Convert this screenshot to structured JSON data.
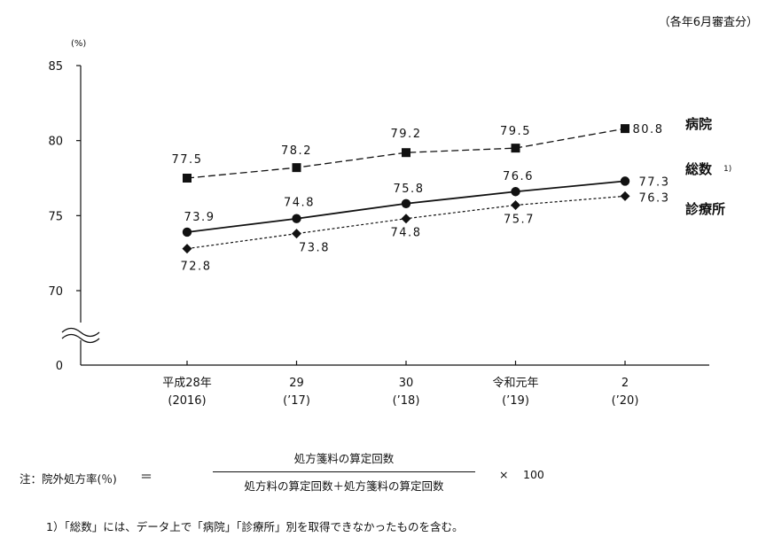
{
  "header": {
    "period_note": "（各年6月審査分）"
  },
  "chart_data": {
    "type": "line",
    "y_unit_label": "(%)",
    "ylim": [
      70,
      85
    ],
    "yticks": [
      70,
      75,
      80,
      85
    ],
    "y_break": true,
    "y_zero_label": "0",
    "x_ticks": [
      {
        "line1": "平成28年",
        "line2": "(2016)"
      },
      {
        "line1": "29",
        "line2": "(’17)"
      },
      {
        "line1": "30",
        "line2": "(’18)"
      },
      {
        "line1": "令和元年",
        "line2": "(’19)"
      },
      {
        "line1": "2",
        "line2": "(’20)"
      }
    ],
    "series": [
      {
        "name": "病院",
        "marker": "square",
        "line_style": "dashed",
        "values": [
          77.5,
          78.2,
          79.2,
          79.5,
          80.8
        ],
        "labels": [
          "77.5",
          "78.2",
          "79.2",
          "79.5",
          "80.8"
        ]
      },
      {
        "name": "総数",
        "name_suffix": "1)",
        "marker": "circle",
        "line_style": "solid",
        "values": [
          73.9,
          74.8,
          75.8,
          76.6,
          77.3
        ],
        "labels": [
          "73.9",
          "74.8",
          "75.8",
          "76.6",
          "77.3"
        ]
      },
      {
        "name": "診療所",
        "marker": "diamond",
        "line_style": "dotted",
        "values": [
          72.8,
          73.8,
          74.8,
          75.7,
          76.3
        ],
        "labels": [
          "72.8",
          "73.8",
          "74.8",
          "75.7",
          "76.3"
        ]
      }
    ]
  },
  "note": {
    "label": "注：院外処方率(％)",
    "equals": "＝",
    "numerator": "処方箋料の算定回数",
    "denominator": "処方料の算定回数＋処方箋料の算定回数",
    "times": "×",
    "multiplier": "100"
  },
  "footnote": "1）「総数」には、データ上で「病院」「診療所」別を取得できなかったものを含む。"
}
